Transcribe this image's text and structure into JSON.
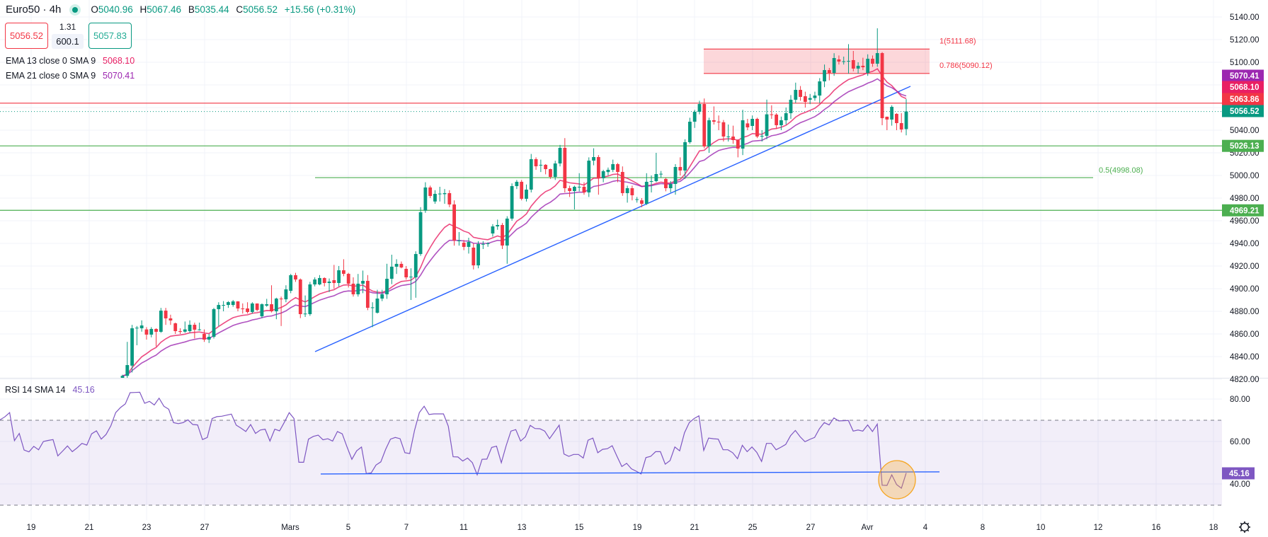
{
  "header": {
    "symbol": "Euro50 · 4h",
    "market_status_icon": "market-open-dot",
    "o_label": "O",
    "o": "5040.96",
    "h_label": "H",
    "h": "5067.46",
    "b_label": "B",
    "b": "5035.44",
    "c_label": "C",
    "c": "5056.52",
    "change": "+15.56 (+0.31%)"
  },
  "trade": {
    "sell": "5056.52",
    "spread": "1.31",
    "quantity": "600.1",
    "buy": "5057.83"
  },
  "indicators": [
    {
      "label": "EMA 13 close 0 SMA 9",
      "value": "5068.10",
      "color": "#e91e63"
    },
    {
      "label": "EMA 21 close 0 SMA 9",
      "value": "5070.41",
      "color": "#9c27b0"
    }
  ],
  "rsi_legend": {
    "label": "RSI 14 SMA 14",
    "value": "45.16"
  },
  "price_axis": [
    "5140.00",
    "5120.00",
    "5100.00",
    "5040.00",
    "5020.00",
    "5000.00",
    "4980.00",
    "4960.00",
    "4940.00",
    "4920.00",
    "4900.00",
    "4880.00",
    "4860.00",
    "4840.00",
    "4820.00"
  ],
  "rsi_axis": [
    "80.00",
    "60.00",
    "40.00"
  ],
  "badges": [
    {
      "value": "5070.41",
      "color": "#9c27b0"
    },
    {
      "value": "5068.10",
      "color": "#e91e63"
    },
    {
      "value": "5063.86",
      "color": "#f23645"
    },
    {
      "value": "5056.52",
      "color": "#089981"
    },
    {
      "value": "5026.13",
      "color": "#4caf50"
    },
    {
      "value": "4969.21",
      "color": "#4caf50"
    }
  ],
  "rsi_badge": {
    "value": "45.16",
    "color": "#7e57c2"
  },
  "date_axis": [
    "19",
    "21",
    "23",
    "27",
    "Mars",
    "5",
    "7",
    "11",
    "13",
    "15",
    "19",
    "21",
    "25",
    "27",
    "Avr",
    "4",
    "8",
    "10",
    "12",
    "16",
    "18"
  ],
  "settings_icon": "gear-icon",
  "chart_data": {
    "type": "candlestick",
    "title": "Euro50 · 4h",
    "ylim": [
      4820,
      5140
    ],
    "grid": true,
    "colors": {
      "up": "#089981",
      "down": "#f23645",
      "ema13": "#e91e63",
      "ema21": "#9c27b0",
      "trendline": "#2962ff",
      "support": "#4caf50",
      "resistance": "#f23645",
      "rsi": "#7e57c2",
      "highlight": "#f5a623"
    },
    "candles": [
      [
        4821,
        4824,
        4819,
        4823
      ],
      [
        4823,
        4853,
        4820,
        4832.5
      ],
      [
        4832,
        4868,
        4826,
        4865
      ],
      [
        4865,
        4867,
        4850,
        4865.5
      ],
      [
        4865,
        4872,
        4862,
        4867.5
      ],
      [
        4864,
        4866,
        4855,
        4859.4
      ],
      [
        4859.4,
        4866,
        4857,
        4864.4
      ],
      [
        4864.4,
        4865,
        4849,
        4861.9
      ],
      [
        4861.9,
        4883,
        4861,
        4880.6
      ],
      [
        4880.6,
        4883,
        4868,
        4873.75
      ],
      [
        4873.75,
        4877,
        4868,
        4871.9
      ],
      [
        4869.4,
        4870,
        4860,
        4862.5
      ],
      [
        4862.5,
        4865,
        4860,
        4862
      ],
      [
        4862,
        4871,
        4861,
        4864
      ],
      [
        4862.5,
        4872,
        4861,
        4868.1
      ],
      [
        4868.1,
        4870,
        4856,
        4863.75
      ],
      [
        4864,
        4870,
        4863,
        4864
      ],
      [
        4860,
        4864,
        4853,
        4855
      ],
      [
        4855,
        4860,
        4852,
        4857.5
      ],
      [
        4857.5,
        4883,
        4856,
        4881.9
      ],
      [
        4881.9,
        4888,
        4867,
        4885.6
      ],
      [
        4885.6,
        4889,
        4880,
        4885.6
      ],
      [
        4885.6,
        4889,
        4883,
        4888.1
      ],
      [
        4885.6,
        4890,
        4884,
        4888.75
      ],
      [
        4888.75,
        4889,
        4880,
        4882.5
      ],
      [
        4882.5,
        4887,
        4878,
        4881.9
      ],
      [
        4882.5,
        4888,
        4878,
        4879.4
      ],
      [
        4879.4,
        4888,
        4878,
        4886.9
      ],
      [
        4886.9,
        4887,
        4880,
        4881.25
      ],
      [
        4875.6,
        4887,
        4874,
        4886.25
      ],
      [
        4885,
        4891,
        4884,
        4886.25
      ],
      [
        4886.25,
        4903,
        4879,
        4880
      ],
      [
        4880,
        4892,
        4873,
        4891.25
      ],
      [
        4891.25,
        4893,
        4867,
        4890.6
      ],
      [
        4890.6,
        4903,
        4888,
        4899.4
      ],
      [
        4898.1,
        4913,
        4896,
        4911.9
      ],
      [
        4911.9,
        4914,
        4906,
        4908.1
      ],
      [
        4908.1,
        4909,
        4874,
        4877.5
      ],
      [
        4877.5,
        4894,
        4875,
        4878
      ],
      [
        4877.5,
        4906,
        4876,
        4903.75
      ],
      [
        4903.75,
        4910,
        4902,
        4908.1
      ],
      [
        4903.75,
        4912,
        4903,
        4909.4
      ],
      [
        4909.4,
        4910,
        4902,
        4905
      ],
      [
        4905,
        4909,
        4897,
        4906.25
      ],
      [
        4907.5,
        4921,
        4900,
        4905
      ],
      [
        4905,
        4920,
        4902,
        4916.25
      ],
      [
        4916.25,
        4926,
        4911,
        4913.1
      ],
      [
        4913.1,
        4914,
        4901,
        4904.4
      ],
      [
        4904.4,
        4910,
        4893,
        4895
      ],
      [
        4895,
        4913,
        4893,
        4904.4
      ],
      [
        4904.4,
        4916,
        4896,
        4906.9
      ],
      [
        4906.9,
        4912,
        4881,
        4883.1
      ],
      [
        4883.1,
        4888,
        4866,
        4883.5
      ],
      [
        4878.75,
        4899,
        4878,
        4891.25
      ],
      [
        4891.25,
        4899,
        4889,
        4895
      ],
      [
        4895,
        4922,
        4891,
        4908.75
      ],
      [
        4908.75,
        4930,
        4904,
        4919.4
      ],
      [
        4919.4,
        4926,
        4913,
        4921.9
      ],
      [
        4921.9,
        4924,
        4918,
        4918.75
      ],
      [
        4917.5,
        4920,
        4908,
        4910
      ],
      [
        4910,
        4918,
        4890,
        4910.6
      ],
      [
        4910,
        4933,
        4892,
        4930.6
      ],
      [
        4930.6,
        4972,
        4929,
        4967.5
      ],
      [
        4969,
        4994,
        4967,
        4989.4
      ],
      [
        4989.4,
        4991,
        4980,
        4981.9
      ],
      [
        4977,
        4987,
        4975,
        4983.75
      ],
      [
        4983.75,
        4990,
        4977,
        4984
      ],
      [
        4983.5,
        4988,
        4975,
        4984.4
      ],
      [
        4984.4,
        4987,
        4972,
        4974.4
      ],
      [
        4974.4,
        4978,
        4938,
        4942.5
      ],
      [
        4942.5,
        4950,
        4938,
        4942.5
      ],
      [
        4940.6,
        4943,
        4934,
        4936.9
      ],
      [
        4936.9,
        4945,
        4931,
        4941.25
      ],
      [
        4936.25,
        4940,
        4917,
        4920.6
      ],
      [
        4920.6,
        4942,
        4918,
        4939.4
      ],
      [
        4939.4,
        4942,
        4935,
        4939.5
      ],
      [
        4939.4,
        4941,
        4937,
        4940
      ],
      [
        4948.75,
        4957,
        4946,
        4955
      ],
      [
        4955,
        4961,
        4952,
        4956.25
      ],
      [
        4956.25,
        4958,
        4935,
        4938.1
      ],
      [
        4938.1,
        4964,
        4922,
        4961.9
      ],
      [
        4961.9,
        4993,
        4960,
        4990.6
      ],
      [
        4990.6,
        4996,
        4988,
        4994.4
      ],
      [
        4994.4,
        4996,
        4978,
        4979.4
      ],
      [
        4979.4,
        4992,
        4977,
        4987.5
      ],
      [
        4987.5,
        5019,
        4985,
        5014.4
      ],
      [
        5014.4,
        5016,
        5005,
        5008.1
      ],
      [
        5009,
        5014,
        5003,
        5009.4
      ],
      [
        5009.4,
        5010,
        5001,
        5005.6
      ],
      [
        5005.6,
        5006,
        4997,
        4998.75
      ],
      [
        4998.75,
        5013,
        4996,
        5010.6
      ],
      [
        5010.6,
        5027,
        5008,
        5024.4
      ],
      [
        5024.4,
        5033,
        4985,
        4988.75
      ],
      [
        4988.75,
        4991,
        4981,
        4986.25
      ],
      [
        4986.25,
        4991,
        4970,
        4990
      ],
      [
        4990,
        5002,
        4986,
        4990
      ],
      [
        4990,
        4994,
        4983,
        4985
      ],
      [
        4985,
        5016,
        4981,
        5013.1
      ],
      [
        5013.1,
        5024,
        5009,
        5016.25
      ],
      [
        5016.25,
        5018,
        4983,
        4997.5
      ],
      [
        4997.5,
        5005,
        4994,
        5003.75
      ],
      [
        5003,
        5007,
        5000,
        5005
      ],
      [
        5005,
        5014,
        5003,
        5010
      ],
      [
        5010,
        5011,
        4994,
        5003.1
      ],
      [
        5003.1,
        5008,
        4982,
        4984.4
      ],
      [
        4984.4,
        4991,
        4976,
        4988.75
      ],
      [
        4988.75,
        4991,
        4978,
        4982.5
      ],
      [
        4979,
        4981,
        4976,
        4979
      ],
      [
        4978,
        4980,
        4972,
        4975
      ],
      [
        4975,
        5002,
        4974,
        4994.4
      ],
      [
        4994.4,
        5000,
        4985,
        4995
      ],
      [
        4995,
        5020,
        4994,
        5001.25
      ],
      [
        5001,
        5004,
        4998,
        5001.5
      ],
      [
        4996.9,
        4998,
        4986,
        4988.75
      ],
      [
        4988.75,
        4995,
        4985,
        4992.5
      ],
      [
        4992.5,
        5010,
        4983,
        5007.5
      ],
      [
        5007.5,
        5016,
        5000,
        5004.4
      ],
      [
        5004.4,
        5032,
        4997,
        5029.4
      ],
      [
        5029.4,
        5051,
        5028,
        5047.5
      ],
      [
        5047.5,
        5058,
        5042,
        5056.25
      ],
      [
        5056.25,
        5066,
        5054,
        5063.1
      ],
      [
        5063.1,
        5068,
        5024,
        5025.6
      ],
      [
        5025.6,
        5051,
        5020,
        5048.75
      ],
      [
        5048.75,
        5061,
        5045,
        5047.5
      ],
      [
        5047.5,
        5053,
        5040,
        5047
      ],
      [
        5047,
        5049,
        5030,
        5034.4
      ],
      [
        5034.4,
        5045,
        5030,
        5034.5
      ],
      [
        5034.4,
        5044,
        5028,
        5031.25
      ],
      [
        5031.25,
        5032,
        5016,
        5023.75
      ],
      [
        5023.75,
        5058,
        5018,
        5048.75
      ],
      [
        5046,
        5050,
        5040,
        5042.5
      ],
      [
        5043.75,
        5053,
        5040,
        5050
      ],
      [
        5050,
        5051,
        5033,
        5034.4
      ],
      [
        5034.4,
        5040,
        5030,
        5035
      ],
      [
        5035,
        5067,
        5032,
        5054
      ],
      [
        5054,
        5062,
        5050,
        5053.75
      ],
      [
        5053.75,
        5055,
        5041,
        5044.4
      ],
      [
        5044.4,
        5052,
        5040,
        5048.75
      ],
      [
        5048.75,
        5060,
        5045,
        5055
      ],
      [
        5055,
        5071,
        5050,
        5066.9
      ],
      [
        5066.9,
        5082,
        5064,
        5075.6
      ],
      [
        5075.6,
        5079,
        5066,
        5069.4
      ],
      [
        5070,
        5074,
        5060,
        5065
      ],
      [
        5066.9,
        5072,
        5063,
        5068.4
      ],
      [
        5068.4,
        5074,
        5066,
        5070.6
      ],
      [
        5070.6,
        5086,
        5064,
        5083.1
      ],
      [
        5083.1,
        5098,
        5078,
        5093.1
      ],
      [
        5093.1,
        5095,
        5084,
        5090.6
      ],
      [
        5090.6,
        5108,
        5088,
        5103.75
      ],
      [
        5102.5,
        5106,
        5098,
        5100.6
      ],
      [
        5100.6,
        5105,
        5098,
        5100.9
      ],
      [
        5101,
        5116,
        5090,
        5101.2
      ],
      [
        5101.9,
        5110,
        5092,
        5094.4
      ],
      [
        5094.4,
        5100,
        5090,
        5096.9
      ],
      [
        5096.9,
        5104,
        5093,
        5095.6
      ],
      [
        5090.6,
        5107,
        5088,
        5103.1
      ],
      [
        5103.1,
        5106,
        5096,
        5098.75
      ],
      [
        5098.75,
        5130,
        5096,
        5108.1
      ],
      [
        5108.1,
        5109,
        5044.4,
        5050.6
      ],
      [
        5051.9,
        5052,
        5040,
        5049.4
      ],
      [
        5049.4,
        5062,
        5044,
        5060.6
      ],
      [
        5054.4,
        5055,
        5040,
        5046.25
      ],
      [
        5046.25,
        5055,
        5038,
        5040.6
      ],
      [
        5040.96,
        5067.46,
        5035.44,
        5056.52
      ]
    ],
    "ema_periods": [
      13,
      21
    ],
    "levels": {
      "resistance": 5063.86,
      "last_price": 5056.52,
      "support_upper": 5026.13,
      "support_lower": 4969.21,
      "fib_0_5": {
        "label": "0.5(4998.08)",
        "price": 4998.08
      },
      "fib_zone": {
        "top_label": "1(5111.68)",
        "top": 5111.68,
        "bottom_label": "0.786(5090.12)",
        "bottom": 5090.12
      }
    },
    "trendline": {
      "start_price": 4844.4,
      "end_price": 5078.75
    },
    "rsi": {
      "period": 14,
      "ylim": [
        25,
        90
      ],
      "upper": 70,
      "lower": 30,
      "trendline": {
        "start": 44.7,
        "end": 45.7
      },
      "values": [
        70.2,
        71.6,
        73.6,
        60.4,
        63.8,
        56,
        55.1,
        57.7,
        56.1,
        60,
        60.5,
        60.9,
        53.2,
        55.5,
        57.9,
        55.2,
        57,
        59.1,
        58.3,
        63.6,
        65,
        61.1,
        63.3,
        67.4,
        73.6,
        76,
        77.7,
        83,
        83.1,
        83.2,
        78,
        78.9,
        77.2,
        80.4,
        76.6,
        75.2,
        68.9,
        68.4,
        68.9,
        70.2,
        68,
        67.8,
        60.9,
        61.9,
        70.8,
        71.7,
        71.9,
        72.4,
        72.9,
        67.7,
        66.3,
        64.7,
        68,
        63.8,
        65.4,
        65.8,
        60.2,
        65.8,
        65,
        69.1,
        73.6,
        70.8,
        50.2,
        50.2,
        61.1,
        62.4,
        63,
        60.8,
        61.3,
        60.2,
        64.7,
        63.6,
        57.4,
        51.6,
        55.6,
        57.4,
        44.9,
        45.2,
        48.9,
        50.4,
        56.3,
        61.1,
        61.9,
        61.3,
        54.7,
        54.3,
        65.2,
        73.6,
        76.6,
        72.7,
        73,
        73,
        73,
        67.2,
        52.8,
        52.7,
        50.8,
        52.2,
        50,
        44.3,
        51.6,
        51.7,
        57.2,
        57.8,
        50,
        58,
        64.9,
        65.6,
        60.2,
        62.2,
        67.6,
        66.1,
        66,
        64.9,
        61.3,
        64.5,
        67.7,
        54.1,
        53,
        53.9,
        53.9,
        52.2,
        60.6,
        61.6,
        54.7,
        56.3,
        56.6,
        58,
        53,
        48.2,
        49.7,
        47.1,
        46,
        44.7,
        52.4,
        53,
        55.2,
        55.2,
        49.3,
        51,
        57.4,
        55.6,
        64.1,
        68.9,
        70.8,
        72.1,
        55.8,
        61.6,
        61.3,
        61.1,
        56.1,
        56.1,
        54.7,
        51.9,
        58.2,
        55.2,
        57.4,
        54.9,
        50.6,
        59.1,
        59.1,
        56.1,
        57.3,
        58.6,
        62.7,
        65.2,
        62.2,
        59.9,
        61,
        61.9,
        66,
        68.9,
        67.8,
        71.1,
        69.7,
        69.8,
        69.9,
        64.9,
        65.4,
        64.9,
        67.8,
        64.7,
        68.2,
        39.4,
        39.3,
        44.3,
        39.7,
        38,
        45.16
      ]
    }
  }
}
